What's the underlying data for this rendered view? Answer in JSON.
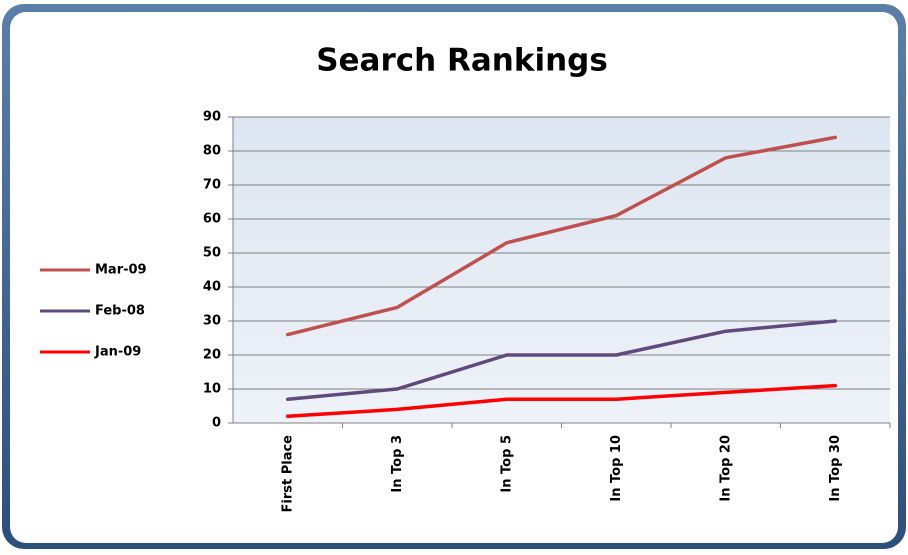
{
  "chart_data": {
    "type": "line",
    "title": "Search Rankings",
    "categories": [
      "First Place",
      "In Top 3",
      "In Top 5",
      "In Top 10",
      "In Top 20",
      "In Top 30"
    ],
    "series": [
      {
        "name": "Mar-09",
        "color": "#c0504d",
        "values": [
          26,
          34,
          53,
          61,
          78,
          84
        ]
      },
      {
        "name": "Feb-08",
        "color": "#604a7b",
        "values": [
          7,
          10,
          20,
          20,
          27,
          30
        ]
      },
      {
        "name": "Jan-09",
        "color": "#ff0000",
        "values": [
          2,
          4,
          7,
          7,
          9,
          11
        ]
      }
    ],
    "ylim": [
      0,
      90
    ],
    "yticks": [
      0,
      10,
      20,
      30,
      40,
      50,
      60,
      70,
      80,
      90
    ],
    "grid": true,
    "legend": "left"
  }
}
